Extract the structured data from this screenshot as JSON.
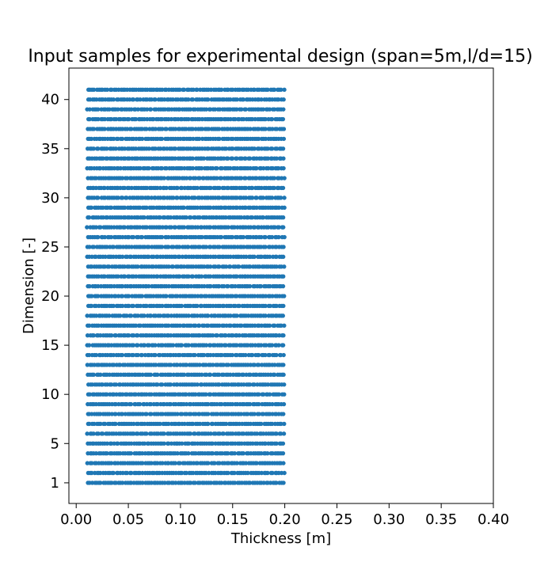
{
  "chart_data": {
    "type": "scatter",
    "title": "Input samples for experimental design (span=5m,l/d=15)",
    "xlabel": "Thickness [m]",
    "ylabel": "Dimension [-]",
    "xlim": [
      -0.007,
      0.4
    ],
    "ylim": [
      -1.1,
      43.2
    ],
    "x_ticks": [
      0.0,
      0.05,
      0.1,
      0.15,
      0.2,
      0.25,
      0.3,
      0.35,
      0.4
    ],
    "x_tick_labels": [
      "0.00",
      "0.05",
      "0.10",
      "0.15",
      "0.20",
      "0.25",
      "0.30",
      "0.35",
      "0.40"
    ],
    "y_ticks": [
      1,
      5,
      10,
      15,
      20,
      25,
      30,
      35,
      40
    ],
    "y_tick_labels": [
      "1",
      "5",
      "10",
      "15",
      "20",
      "25",
      "30",
      "35",
      "40"
    ],
    "grid": false,
    "legend": "none",
    "series": [
      {
        "marker_color": "#1f77b4",
        "dimension_levels": [
          1,
          41
        ],
        "thickness_range": [
          0.01,
          0.2
        ],
        "samples_per_level": 90
      }
    ]
  }
}
